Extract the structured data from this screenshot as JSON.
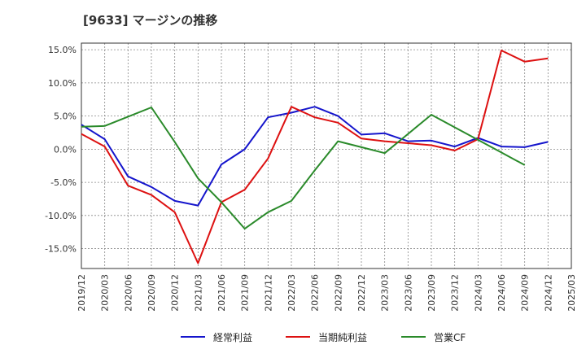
{
  "chart_data": {
    "type": "line",
    "title": "[9633]  マージンの推移",
    "x": [
      "2019/12",
      "2020/03",
      "2020/06",
      "2020/09",
      "2020/12",
      "2021/03",
      "2021/06",
      "2021/09",
      "2021/12",
      "2022/03",
      "2022/06",
      "2022/09",
      "2022/12",
      "2023/03",
      "2023/06",
      "2023/09",
      "2023/12",
      "2024/03",
      "2024/06",
      "2024/09",
      "2024/12",
      "2025/03"
    ],
    "ylim": [
      -18,
      16
    ],
    "y_ticks": [
      15,
      10,
      5,
      0,
      -5,
      -10,
      -15
    ],
    "y_tick_labels": [
      "15.0%",
      "10.0%",
      "5.0%",
      "0.0%",
      "-5.0%",
      "-10.0%",
      "-15.0%"
    ],
    "grid": true,
    "legend_position": "bottom",
    "series": [
      {
        "name": "経常利益",
        "color": "#1515cc",
        "values": [
          3.7,
          1.5,
          -4.1,
          -5.7,
          -7.8,
          -8.5,
          -2.3,
          0.0,
          4.8,
          5.5,
          6.4,
          5.0,
          2.2,
          2.4,
          1.2,
          1.3,
          0.4,
          1.7,
          0.4,
          0.3,
          1.1,
          null
        ]
      },
      {
        "name": "当期純利益",
        "color": "#dd1111",
        "values": [
          2.3,
          0.4,
          -5.5,
          -6.9,
          -9.5,
          -17.2,
          -8.0,
          -6.1,
          -1.4,
          6.4,
          4.8,
          4.0,
          1.6,
          1.2,
          0.9,
          0.6,
          -0.2,
          1.5,
          14.9,
          13.2,
          13.7,
          null
        ]
      },
      {
        "name": "営業CF",
        "color": "#2a8a2a",
        "values": [
          3.4,
          3.5,
          4.9,
          6.3,
          1.1,
          -4.4,
          -8.0,
          -12.0,
          -9.5,
          -7.8,
          -3.2,
          1.2,
          0.3,
          -0.6,
          2.3,
          5.2,
          3.3,
          1.4,
          -0.5,
          -2.4,
          null,
          null
        ]
      }
    ]
  }
}
